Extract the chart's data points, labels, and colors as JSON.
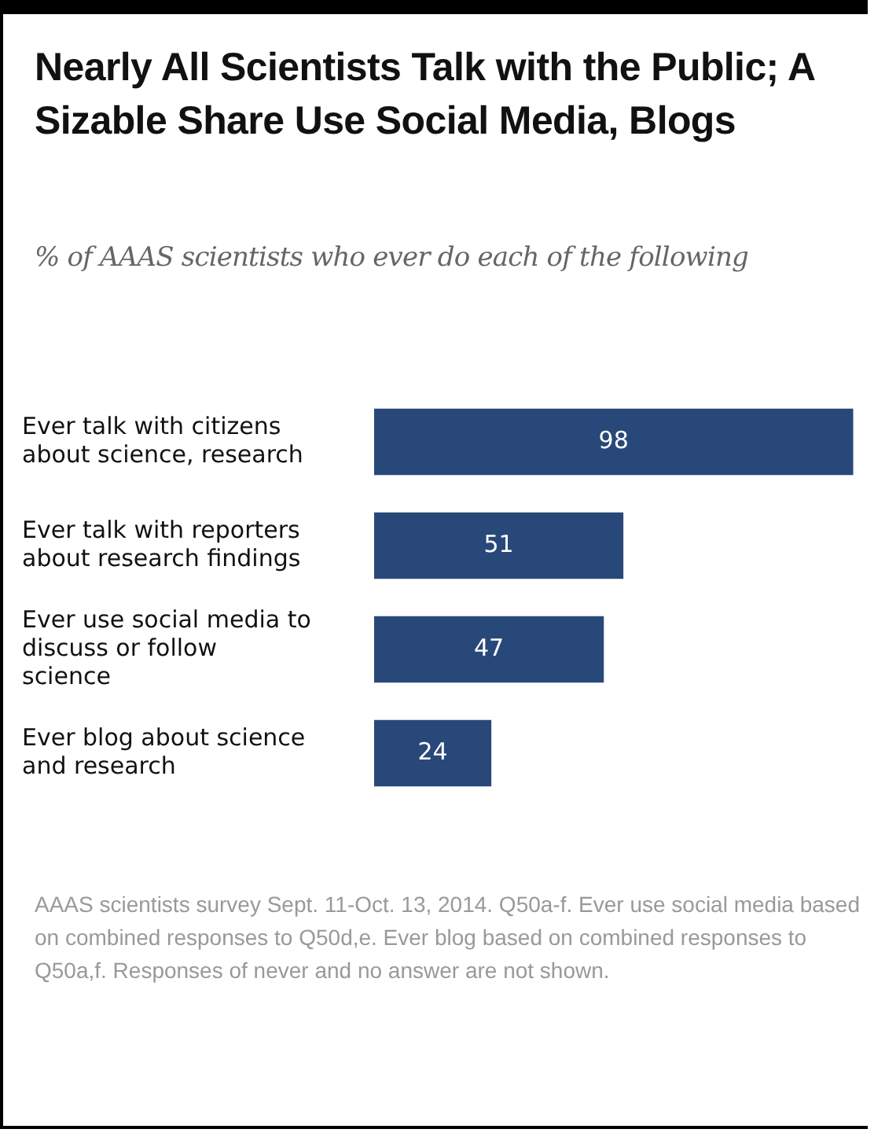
{
  "chart_data": {
    "type": "bar",
    "orientation": "horizontal",
    "title": "Nearly All Scientists Talk with the Public; A Sizable Share Use Social Media, Blogs",
    "subtitle": "% of AAAS scientists who ever do each of the following",
    "categories": [
      "Ever talk with citizens about science, research",
      "Ever talk with reporters about research findings",
      "Ever use social media to discuss or follow science",
      "Ever blog about science and research"
    ],
    "values": [
      98,
      51,
      47,
      24
    ],
    "color": "#29487a",
    "data_labels": true,
    "grid": false,
    "legend": false,
    "tick_labels": "y",
    "annotations": [
      "AAAS scientists survey Sept. 11-Oct. 13, 2014. Q50a-f. Ever use social media based on combined responses to Q50d,e. Ever blog based on combined responses to Q50a,f. Responses of never and no answer are not shown."
    ]
  }
}
